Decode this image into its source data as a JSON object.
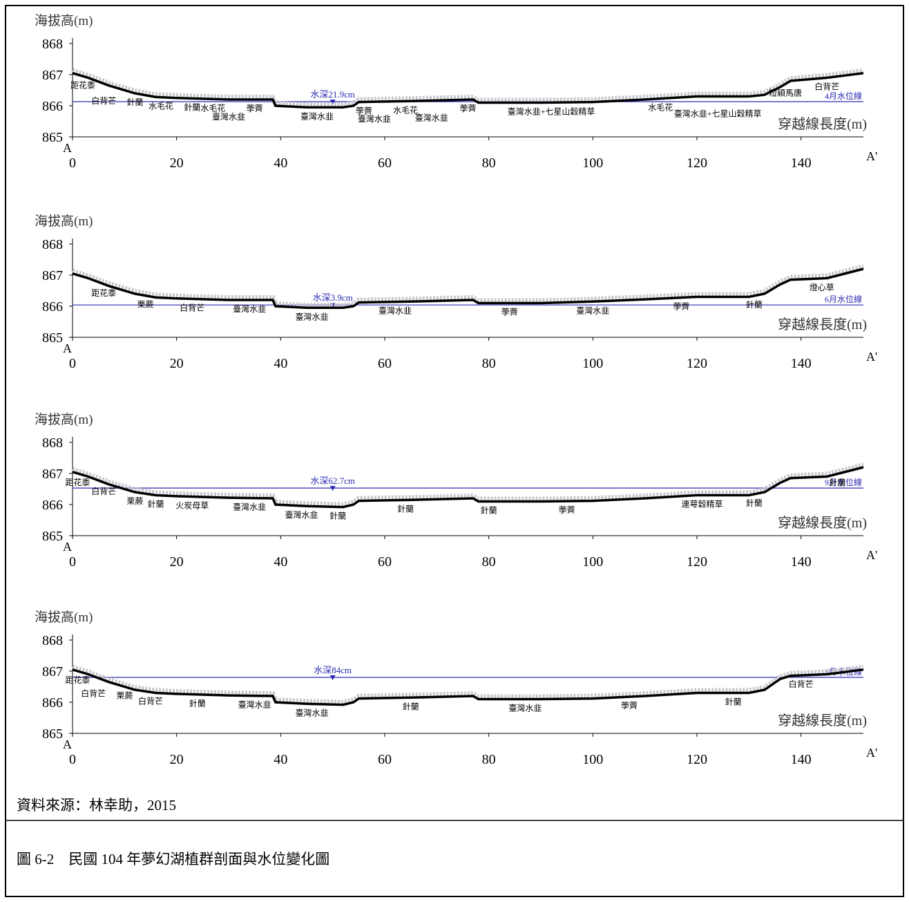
{
  "source": "資料來源：林幸助，2015",
  "caption": "圖 6-2　民國 104 年夢幻湖植群剖面與水位變化圖",
  "chart_data": [
    {
      "type": "line",
      "y_label": "海拔高(m)",
      "x_label": "穿越線長度(m)",
      "start_label": "A",
      "end_label": "A'",
      "xlim": [
        0,
        152
      ],
      "ylim": [
        865,
        868
      ],
      "xticks": [
        0,
        20,
        40,
        60,
        80,
        100,
        120,
        140
      ],
      "yticks": [
        865,
        866,
        867,
        868
      ],
      "x": [
        0,
        3,
        7,
        12,
        16,
        20,
        30,
        38.5,
        39,
        45,
        52,
        54,
        55,
        65,
        77,
        78,
        90,
        100,
        110,
        120,
        130,
        133,
        136,
        138,
        145,
        152
      ],
      "values": [
        867.05,
        866.9,
        866.65,
        866.4,
        866.28,
        866.25,
        866.2,
        866.2,
        866.0,
        865.95,
        865.95,
        866.0,
        866.12,
        866.15,
        866.2,
        866.1,
        866.1,
        866.12,
        866.2,
        866.3,
        866.3,
        866.35,
        866.6,
        866.8,
        866.9,
        867.05
      ],
      "water_level": 866.13,
      "water_level_label": "4月水位線",
      "depth_x": 50,
      "depth_label": "水深21.9cm",
      "plants": [
        {
          "label": "距花黍",
          "x": 2
        },
        {
          "label": "白背芒",
          "x": 6
        },
        {
          "label": "針蘭",
          "x": 12
        },
        {
          "label": "水毛花",
          "x": 17
        },
        {
          "label": "針蘭",
          "x": 23
        },
        {
          "label": "水毛花",
          "x": 27
        },
        {
          "label": "臺灣水韭",
          "x": 30
        },
        {
          "label": "荸薺",
          "x": 35
        },
        {
          "label": "臺灣水韭",
          "x": 47
        },
        {
          "label": "荸薺",
          "x": 56
        },
        {
          "label": "臺灣水韭",
          "x": 58
        },
        {
          "label": "水毛花",
          "x": 64
        },
        {
          "label": "臺灣水韭",
          "x": 69
        },
        {
          "label": "荸薺",
          "x": 76
        },
        {
          "label": "臺灣水韭+七星山穀精草",
          "x": 92
        },
        {
          "label": "水毛花",
          "x": 113
        },
        {
          "label": "臺灣水韭+七星山穀精草",
          "x": 124
        },
        {
          "label": "短穎馬唐",
          "x": 137
        },
        {
          "label": "白背芒",
          "x": 145
        }
      ]
    },
    {
      "type": "line",
      "y_label": "海拔高(m)",
      "x_label": "穿越線長度(m)",
      "start_label": "A",
      "end_label": "A'",
      "xlim": [
        0,
        152
      ],
      "ylim": [
        865,
        868
      ],
      "xticks": [
        0,
        20,
        40,
        60,
        80,
        100,
        120,
        140
      ],
      "yticks": [
        865,
        866,
        867,
        868
      ],
      "x": [
        0,
        3,
        7,
        12,
        16,
        20,
        30,
        38.5,
        39,
        45,
        52,
        54,
        55,
        65,
        77,
        78,
        90,
        100,
        110,
        120,
        130,
        133,
        136,
        138,
        145,
        152
      ],
      "values": [
        867.05,
        866.9,
        866.65,
        866.4,
        866.28,
        866.25,
        866.2,
        866.2,
        866.0,
        865.95,
        865.95,
        866.0,
        866.12,
        866.15,
        866.2,
        866.1,
        866.1,
        866.15,
        866.22,
        866.3,
        866.3,
        866.4,
        866.7,
        866.85,
        866.9,
        867.2
      ],
      "water_level": 866.04,
      "water_level_label": "6月水位線",
      "depth_x": 50,
      "depth_label": "水深3.9cm",
      "plants": [
        {
          "label": "距花黍",
          "x": 6
        },
        {
          "label": "栗蕨",
          "x": 14
        },
        {
          "label": "白背芒",
          "x": 23
        },
        {
          "label": "臺灣水韭",
          "x": 34
        },
        {
          "label": "臺灣水韭",
          "x": 46
        },
        {
          "label": "臺灣水韭",
          "x": 62
        },
        {
          "label": "荸薺",
          "x": 84
        },
        {
          "label": "臺灣水韭",
          "x": 100
        },
        {
          "label": "荸薺",
          "x": 117
        },
        {
          "label": "針蘭",
          "x": 131
        },
        {
          "label": "燈心草",
          "x": 144
        }
      ]
    },
    {
      "type": "line",
      "y_label": "海拔高(m)",
      "x_label": "穿越線長度(m)",
      "start_label": "A",
      "end_label": "A'",
      "xlim": [
        0,
        152
      ],
      "ylim": [
        865,
        868
      ],
      "xticks": [
        0,
        20,
        40,
        60,
        80,
        100,
        120,
        140
      ],
      "yticks": [
        865,
        866,
        867,
        868
      ],
      "x": [
        0,
        3,
        7,
        12,
        16,
        20,
        30,
        38.5,
        39,
        45,
        52,
        54,
        55,
        65,
        77,
        78,
        90,
        100,
        110,
        120,
        130,
        133,
        136,
        138,
        145,
        152
      ],
      "values": [
        867.05,
        866.9,
        866.65,
        866.4,
        866.3,
        866.27,
        866.22,
        866.2,
        866.0,
        865.95,
        865.92,
        866.0,
        866.12,
        866.15,
        866.2,
        866.1,
        866.1,
        866.12,
        866.2,
        866.3,
        866.3,
        866.4,
        866.7,
        866.85,
        866.9,
        867.2
      ],
      "water_level": 866.53,
      "water_level_label": "9月水位線",
      "depth_x": 50,
      "depth_label": "水深62.7cm",
      "plants": [
        {
          "label": "距花黍",
          "x": 1
        },
        {
          "label": "白背芒",
          "x": 6
        },
        {
          "label": "栗蕨",
          "x": 12
        },
        {
          "label": "針蘭",
          "x": 16
        },
        {
          "label": "火炭母草",
          "x": 23
        },
        {
          "label": "臺灣水韭",
          "x": 34
        },
        {
          "label": "臺灣水韭",
          "x": 44
        },
        {
          "label": "針蘭",
          "x": 51
        },
        {
          "label": "針蘭",
          "x": 64
        },
        {
          "label": "針蘭",
          "x": 80
        },
        {
          "label": "荸薺",
          "x": 95
        },
        {
          "label": "連萼穀精草",
          "x": 121
        },
        {
          "label": "針蘭",
          "x": 131
        },
        {
          "label": "針蘭",
          "x": 147
        }
      ]
    },
    {
      "type": "line",
      "y_label": "海拔高(m)",
      "x_label": "穿越線長度(m)",
      "start_label": "A",
      "end_label": "A'",
      "xlim": [
        0,
        152
      ],
      "ylim": [
        865,
        868
      ],
      "xticks": [
        0,
        20,
        40,
        60,
        80,
        100,
        120,
        140
      ],
      "yticks": [
        865,
        866,
        867,
        868
      ],
      "x": [
        0,
        3,
        7,
        12,
        16,
        20,
        30,
        38.5,
        39,
        45,
        52,
        54,
        55,
        65,
        77,
        78,
        90,
        100,
        110,
        120,
        130,
        133,
        136,
        138,
        145,
        152
      ],
      "values": [
        867.05,
        866.9,
        866.65,
        866.4,
        866.3,
        866.27,
        866.22,
        866.2,
        866.0,
        865.95,
        865.92,
        866.0,
        866.12,
        866.15,
        866.2,
        866.1,
        866.1,
        866.12,
        866.2,
        866.3,
        866.3,
        866.4,
        866.75,
        866.85,
        866.9,
        867.05
      ],
      "water_level": 866.8,
      "water_level_label": "11月水位線",
      "depth_x": 50,
      "depth_label": "水深84cm",
      "plants": [
        {
          "label": "距花黍",
          "x": 1
        },
        {
          "label": "白背芒",
          "x": 4
        },
        {
          "label": "栗蕨",
          "x": 10
        },
        {
          "label": "白背芒",
          "x": 15
        },
        {
          "label": "針蘭",
          "x": 24
        },
        {
          "label": "臺灣水韭",
          "x": 35
        },
        {
          "label": "臺灣水韭",
          "x": 46
        },
        {
          "label": "針蘭",
          "x": 65
        },
        {
          "label": "臺灣水韭",
          "x": 87
        },
        {
          "label": "荸薺",
          "x": 107
        },
        {
          "label": "針蘭",
          "x": 127
        },
        {
          "label": "白背芒",
          "x": 140
        }
      ]
    }
  ]
}
